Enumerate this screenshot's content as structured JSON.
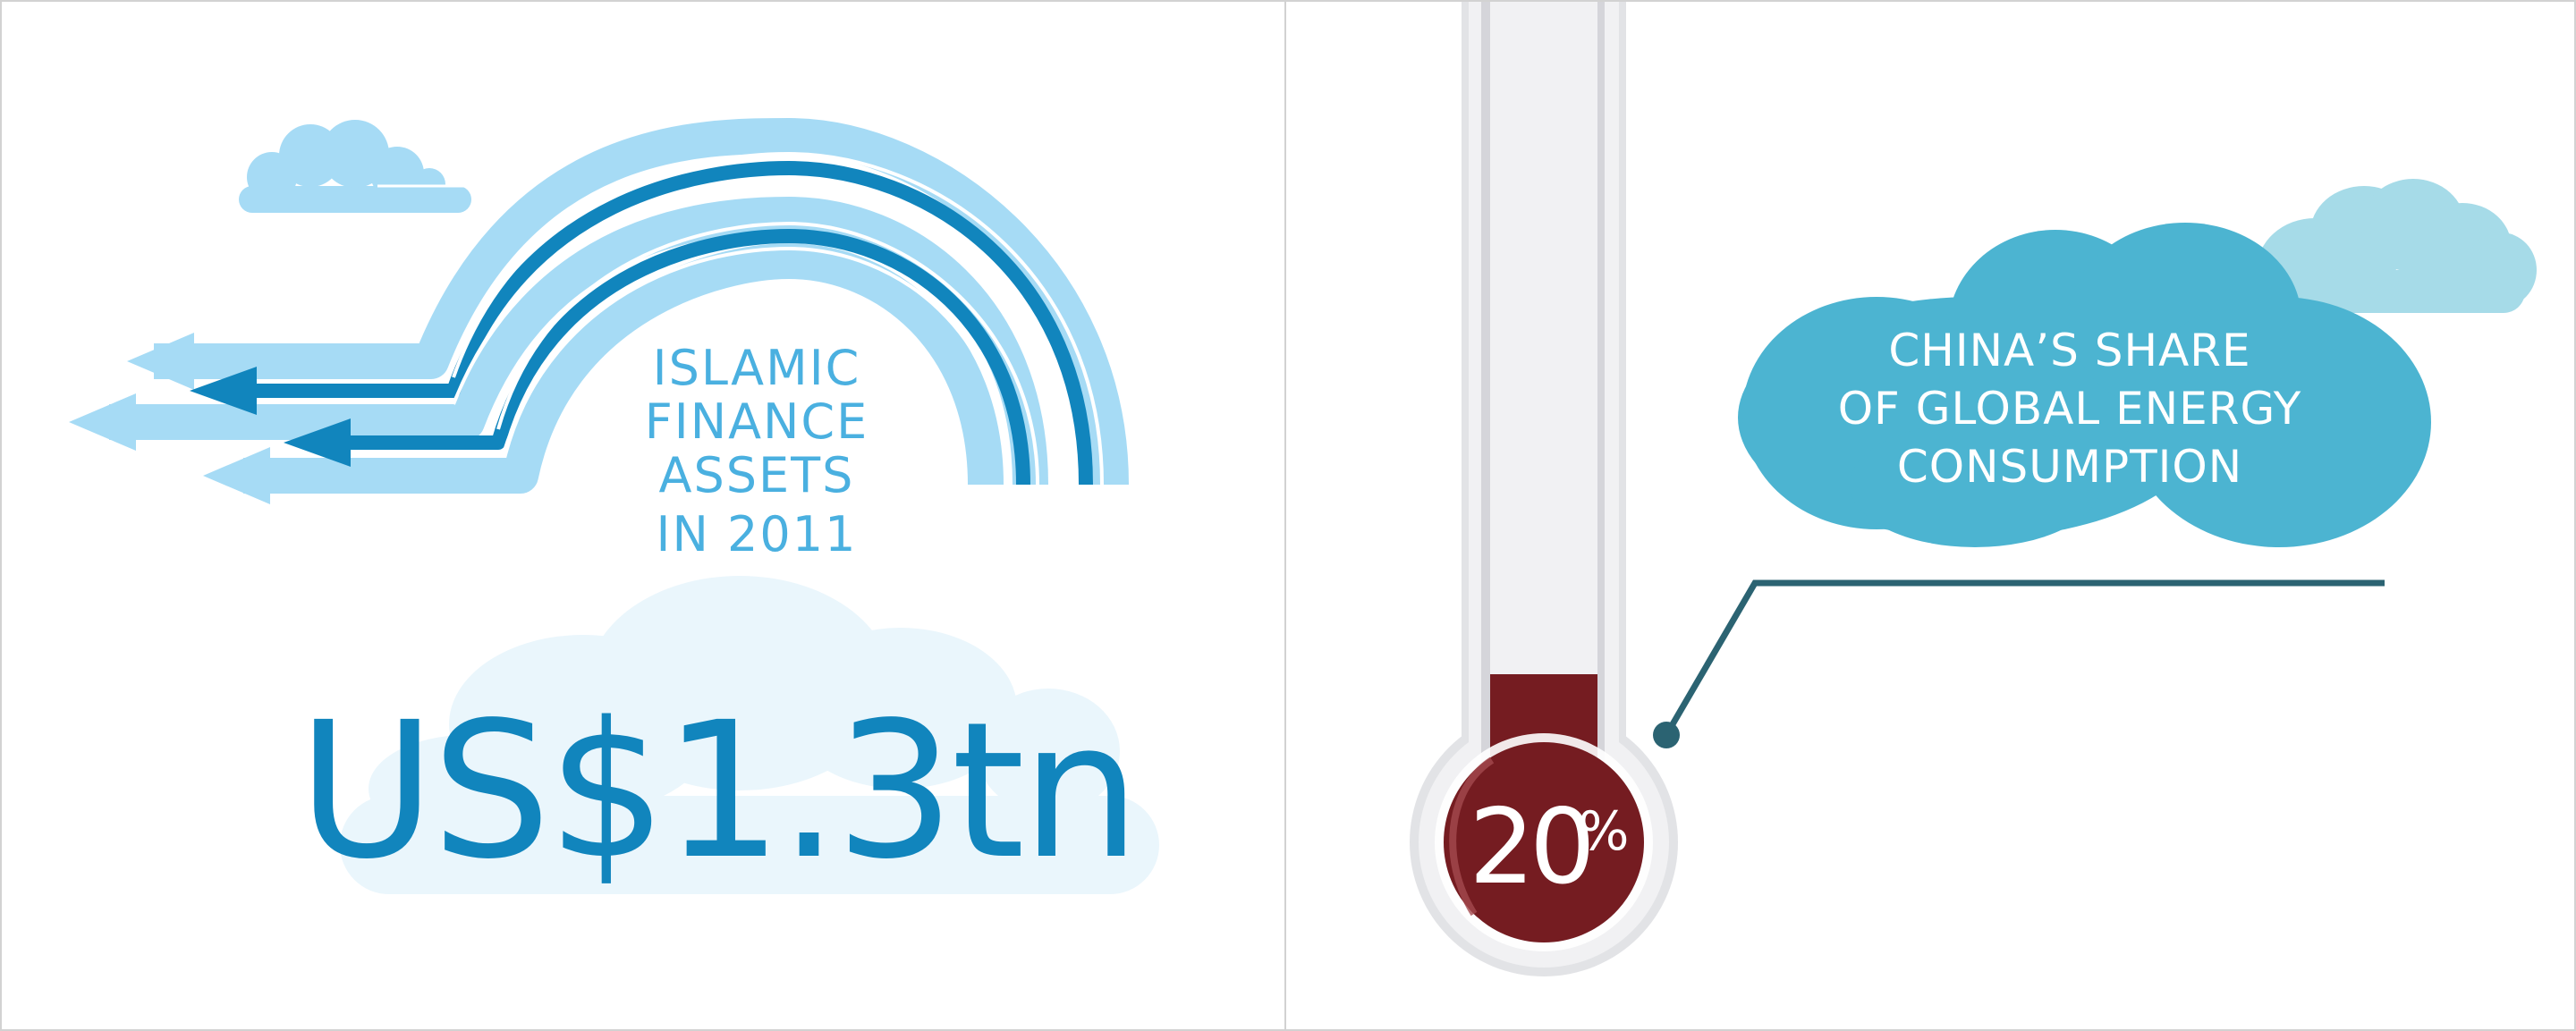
{
  "left": {
    "heading_lines": [
      "ISLAMIC",
      "FINANCE",
      "ASSETS",
      "IN 2011"
    ],
    "value": "US$1.3tn",
    "colors": {
      "light_blue": "#a6dbf5",
      "dark_blue": "#1185bd",
      "heading": "#4ab0e0",
      "pale_cloud": "#eaf6fc"
    },
    "icons": [
      "cloud-icon",
      "rainbow-arrows-icon"
    ]
  },
  "right": {
    "heading_lines": [
      "CHINA’S SHARE",
      "OF GLOBAL ENERGY",
      "CONSUMPTION"
    ],
    "value_number": "20",
    "value_unit": "%",
    "fill_fraction": 0.2,
    "colors": {
      "cloud": "#4cb4d1",
      "cloud_light": "#a6dbe8",
      "mercury": "#751c21",
      "leader_line": "#2b6372"
    },
    "icons": [
      "thermometer-icon",
      "cloud-icon"
    ]
  }
}
